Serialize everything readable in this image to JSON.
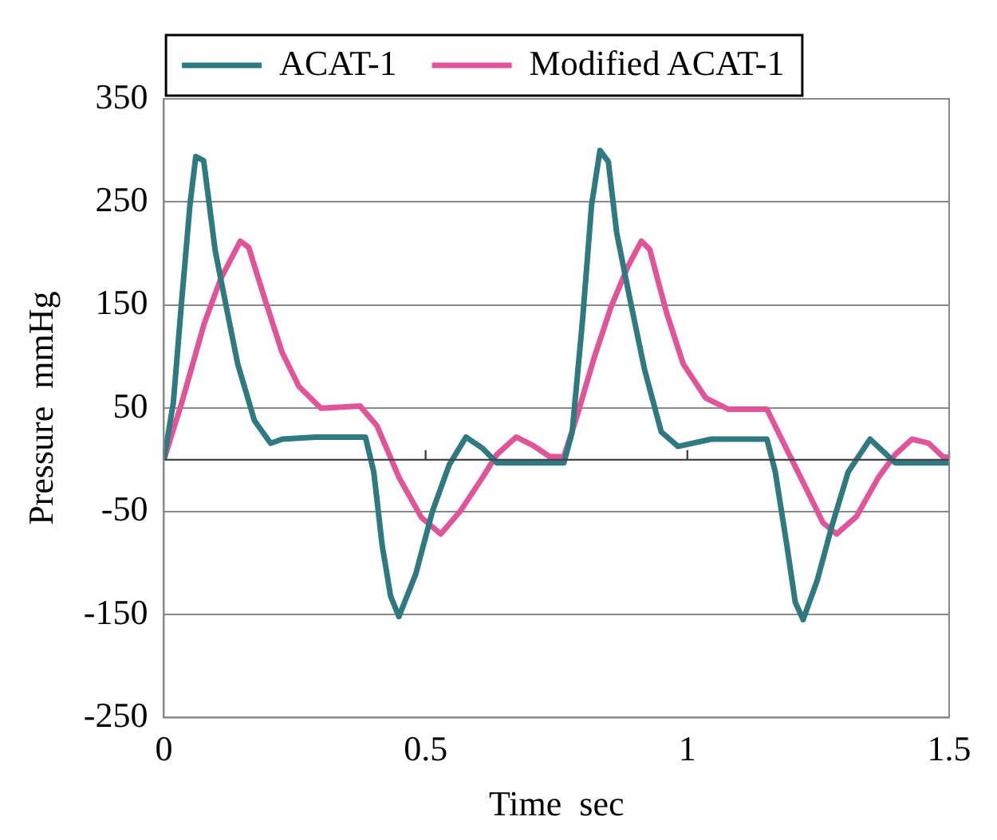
{
  "chart_data": {
    "type": "line",
    "xlabel": "Time  sec",
    "ylabel": "Pressure  mmHg",
    "xlim": [
      0,
      1.5
    ],
    "xticks": [
      0,
      0.5,
      1,
      1.5
    ],
    "ylim": [
      -250,
      350
    ],
    "yticks": [
      -250,
      -150,
      -50,
      50,
      150,
      250,
      350
    ],
    "grid": "y",
    "legend": "top",
    "marker": "none",
    "line_style": "solid",
    "ref_lines": [
      {
        "axis": "y",
        "value": 0,
        "label": null
      }
    ],
    "series": [
      {
        "name": "ACAT-1",
        "color": "#2e7a80",
        "x": [
          0,
          0.018,
          0.034,
          0.05,
          0.061,
          0.076,
          0.098,
          0.119,
          0.141,
          0.173,
          0.204,
          0.226,
          0.29,
          0.385,
          0.401,
          0.417,
          0.433,
          0.449,
          0.481,
          0.513,
          0.545,
          0.577,
          0.609,
          0.636,
          0.764,
          0.78,
          0.8,
          0.817,
          0.833,
          0.849,
          0.865,
          0.891,
          0.918,
          0.95,
          0.982,
          1.046,
          1.152,
          1.168,
          1.19,
          1.206,
          1.221,
          1.248,
          1.275,
          1.307,
          1.349,
          1.397,
          1.5
        ],
        "values": [
          0,
          55,
          154,
          248,
          294,
          290,
          203,
          149,
          93,
          38,
          16,
          20,
          22,
          22,
          -12,
          -83,
          -132,
          -152,
          -111,
          -50,
          -5,
          22,
          11,
          -3,
          -3,
          27,
          137,
          247,
          300,
          289,
          220,
          154,
          88,
          27,
          13,
          20,
          20,
          -12,
          -83,
          -138,
          -155,
          -117,
          -66,
          -12,
          20,
          -3,
          -3
        ]
      },
      {
        "name": "Modified ACAT-1",
        "color": "#e0559a",
        "x": [
          0,
          0.034,
          0.077,
          0.109,
          0.146,
          0.162,
          0.194,
          0.226,
          0.258,
          0.3,
          0.375,
          0.407,
          0.449,
          0.492,
          0.529,
          0.566,
          0.609,
          0.636,
          0.673,
          0.705,
          0.737,
          0.764,
          0.79,
          0.822,
          0.854,
          0.886,
          0.912,
          0.928,
          0.96,
          0.992,
          1.035,
          1.078,
          1.152,
          1.184,
          1.227,
          1.259,
          1.285,
          1.323,
          1.365,
          1.397,
          1.429,
          1.461,
          1.488,
          1.5
        ],
        "values": [
          0,
          55,
          132,
          176,
          212,
          206,
          154,
          104,
          71,
          50,
          52,
          33,
          -17,
          -56,
          -72,
          -50,
          -17,
          5,
          22,
          14,
          3,
          3,
          44,
          99,
          148,
          187,
          212,
          204,
          143,
          93,
          60,
          49,
          49,
          16,
          -28,
          -61,
          -72,
          -55,
          -17,
          5,
          20,
          16,
          3,
          2
        ]
      }
    ]
  }
}
